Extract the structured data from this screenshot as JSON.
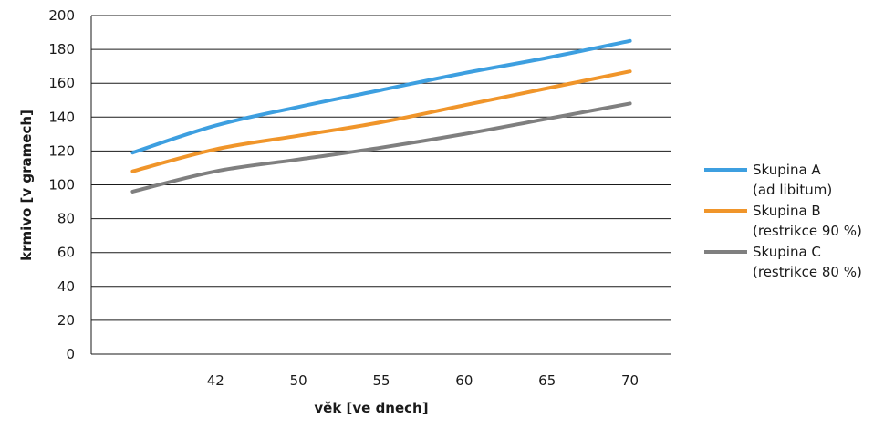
{
  "chart_data": {
    "type": "line",
    "xlabel": "věk [ve dnech]",
    "ylabel": "krmivo [v gramech]",
    "ylim": [
      0,
      200
    ],
    "yticks": [
      0,
      20,
      40,
      60,
      80,
      100,
      120,
      140,
      160,
      180,
      200
    ],
    "categories": [
      "",
      "42",
      "50",
      "55",
      "60",
      "65",
      "70"
    ],
    "grid": "horizontal",
    "legend_position": "right",
    "series": [
      {
        "name": "Skupina A",
        "name_line2": "(ad libitum)",
        "color": "#3d9fe0",
        "values": [
          119,
          135,
          146,
          156,
          166,
          175,
          185
        ]
      },
      {
        "name": "Skupina B",
        "name_line2": "(restrikce 90 %)",
        "color": "#f0952a",
        "values": [
          108,
          121,
          129,
          137,
          147,
          157,
          167
        ]
      },
      {
        "name": "Skupina C",
        "name_line2": "(restrikce 80 %)",
        "color": "#7f7f7f",
        "values": [
          96,
          108,
          115,
          122,
          130,
          139,
          148
        ]
      }
    ]
  }
}
